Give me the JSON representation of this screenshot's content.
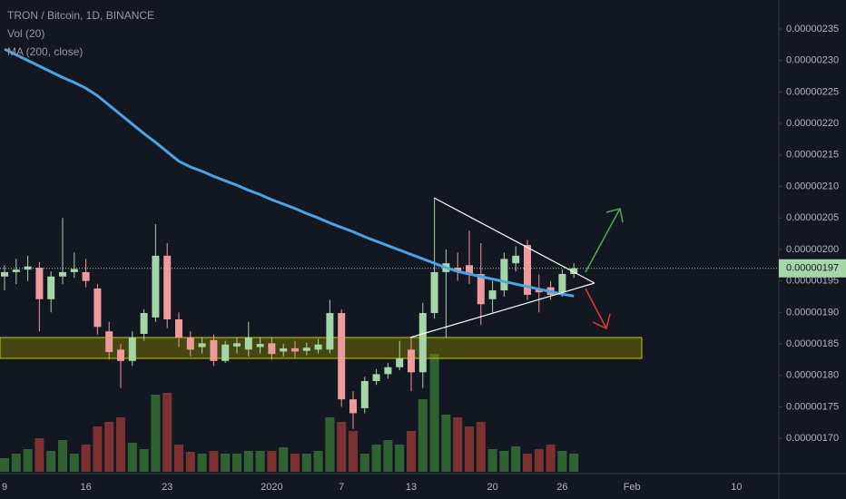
{
  "chart_data": {
    "type": "candlestick",
    "title": "TRON / Bitcoin, 1D, BINANCE",
    "categories": [
      "9",
      null,
      null,
      null,
      null,
      null,
      null,
      "16",
      null,
      null,
      null,
      null,
      null,
      null,
      "23",
      null,
      null,
      null,
      null,
      null,
      null,
      null,
      null,
      "2020",
      null,
      null,
      null,
      null,
      null,
      "7",
      null,
      null,
      null,
      null,
      null,
      "13",
      null,
      null,
      null,
      null,
      null,
      null,
      "20",
      null,
      null,
      null,
      null,
      null,
      "26",
      null,
      null,
      null,
      null,
      null,
      "Feb",
      null,
      null,
      null,
      null,
      null,
      null,
      null,
      null,
      "10"
    ],
    "up_color": "#a5d6a7",
    "down_color": "#ef9a9a",
    "series": [
      {
        "name": "TRON / Bitcoin, 1D, BINANCE",
        "open": [
          1.957e-07,
          1.964e-07,
          1.968e-07,
          1.971e-07,
          1.921e-07,
          1.957e-07,
          1.964e-07,
          1.964e-07,
          1.938e-07,
          1.87e-07,
          1.841e-07,
          1.823e-07,
          1.866e-07,
          1.892e-07,
          1.99e-07,
          1.889e-07,
          1.86e-07,
          1.845e-07,
          1.856e-07,
          1.823e-07,
          1.846e-07,
          1.841e-07,
          1.845e-07,
          1.851e-07,
          1.838e-07,
          1.843e-07,
          1.839e-07,
          1.841e-07,
          1.841e-07,
          1.899e-07,
          1.762e-07,
          1.748e-07,
          1.791e-07,
          1.802e-07,
          1.813e-07,
          1.841e-07,
          1.805e-07,
          1.899e-07,
          1.964e-07,
          1.971e-07,
          1.975e-07,
          1.961e-07,
          1.921e-07,
          1.935e-07,
          1.978e-07,
          2.007e-07,
          1.936e-07,
          1.94e-07,
          1.932e-07,
          1.961e-07,
          null,
          null,
          null,
          null,
          null,
          null,
          null,
          null,
          null,
          null,
          null,
          null,
          null,
          null
        ],
        "high": [
          1.975e-07,
          1.985e-07,
          1.99e-07,
          1.98e-07,
          1.965e-07,
          2.05e-07,
          1.995e-07,
          1.985e-07,
          1.945e-07,
          1.885e-07,
          1.85e-07,
          1.87e-07,
          1.905e-07,
          2.04e-07,
          2.01e-07,
          1.9e-07,
          1.87e-07,
          1.86e-07,
          1.865e-07,
          1.855e-07,
          1.86e-07,
          1.885e-07,
          1.86e-07,
          1.86e-07,
          1.85e-07,
          1.855e-07,
          1.852e-07,
          1.858e-07,
          1.92e-07,
          1.905e-07,
          1.775e-07,
          1.798e-07,
          1.81e-07,
          1.82e-07,
          1.855e-07,
          1.86e-07,
          1.915e-07,
          2.08e-07,
          2e-07,
          1.995e-07,
          2.03e-07,
          2.01e-07,
          1.95e-07,
          1.995e-07,
          2.005e-07,
          2.015e-07,
          1.96e-07,
          1.95e-07,
          1.968e-07,
          1.978e-07,
          null,
          null,
          null,
          null,
          null,
          null,
          null,
          null,
          null,
          null,
          null,
          null,
          null,
          null
        ],
        "low": [
          1.935e-07,
          1.945e-07,
          1.95e-07,
          1.87e-07,
          1.9e-07,
          1.945e-07,
          1.955e-07,
          1.94e-07,
          1.865e-07,
          1.825e-07,
          1.78e-07,
          1.815e-07,
          1.855e-07,
          1.885e-07,
          1.875e-07,
          1.845e-07,
          1.83e-07,
          1.835e-07,
          1.815e-07,
          1.82e-07,
          1.835e-07,
          1.83e-07,
          1.835e-07,
          1.825e-07,
          1.83e-07,
          1.828e-07,
          1.832e-07,
          1.835e-07,
          1.835e-07,
          1.75e-07,
          1.715e-07,
          1.74e-07,
          1.785e-07,
          1.795e-07,
          1.808e-07,
          1.775e-07,
          1.78e-07,
          1.89e-07,
          1.86e-07,
          1.95e-07,
          1.945e-07,
          1.88e-07,
          1.9e-07,
          1.925e-07,
          1.965e-07,
          1.92e-07,
          1.9e-07,
          1.92e-07,
          1.925e-07,
          1.955e-07,
          null,
          null,
          null,
          null,
          null,
          null,
          null,
          null,
          null,
          null,
          null,
          null,
          null,
          null
        ],
        "close": [
          1.964e-07,
          1.968e-07,
          1.973e-07,
          1.921e-07,
          1.957e-07,
          1.964e-07,
          1.969e-07,
          1.95e-07,
          1.877e-07,
          1.837e-07,
          1.823e-07,
          1.86e-07,
          1.899e-07,
          1.99e-07,
          1.889e-07,
          1.86e-07,
          1.841e-07,
          1.851e-07,
          1.823e-07,
          1.849e-07,
          1.851e-07,
          1.86e-07,
          1.85e-07,
          1.834e-07,
          1.843e-07,
          1.838e-07,
          1.844e-07,
          1.849e-07,
          1.899e-07,
          1.762e-07,
          1.74e-07,
          1.791e-07,
          1.802e-07,
          1.813e-07,
          1.827e-07,
          1.805e-07,
          1.899e-07,
          1.964e-07,
          1.978e-07,
          1.964e-07,
          1.961e-07,
          1.913e-07,
          1.935e-07,
          1.985e-07,
          1.99e-07,
          1.928e-07,
          1.932e-07,
          1.928e-07,
          1.961e-07,
          1.97e-07,
          null,
          null,
          null,
          null,
          null,
          null,
          null,
          null,
          null,
          null,
          null,
          null,
          null,
          null
        ]
      }
    ],
    "volume": {
      "name": "Vol (20)",
      "up_color": "#2f6332",
      "down_color": "#7d3030",
      "values": [
        15,
        20,
        25,
        37,
        23,
        35,
        20,
        30,
        50,
        55,
        60,
        32,
        25,
        85,
        87,
        30,
        22,
        20,
        23,
        20,
        20,
        23,
        23,
        23,
        27,
        20,
        20,
        23,
        60,
        55,
        45,
        20,
        30,
        35,
        30,
        45,
        80,
        130,
        63,
        60,
        50,
        55,
        25,
        23,
        28,
        20,
        25,
        30,
        23,
        20,
        null,
        null,
        null,
        null,
        null,
        null,
        null,
        null,
        null,
        null,
        null,
        null,
        null,
        null
      ]
    },
    "ma": {
      "name": "MA (200, close)",
      "color": "#4aa3e6",
      "values": [
        2.318e-07,
        2.309e-07,
        2.3e-07,
        2.291e-07,
        2.282e-07,
        2.273e-07,
        2.265e-07,
        2.256e-07,
        2.244e-07,
        2.229e-07,
        2.214e-07,
        2.199e-07,
        2.184e-07,
        2.17e-07,
        2.155e-07,
        2.14e-07,
        2.131e-07,
        2.124e-07,
        2.116e-07,
        2.109e-07,
        2.102e-07,
        2.094e-07,
        2.087e-07,
        2.079e-07,
        2.072e-07,
        2.065e-07,
        2.057e-07,
        2.05e-07,
        2.042e-07,
        2.035e-07,
        2.028e-07,
        2.02e-07,
        2.013e-07,
        2.006e-07,
        1.999e-07,
        1.992e-07,
        1.985e-07,
        1.978e-07,
        1.971e-07,
        1.965e-07,
        1.961e-07,
        1.957e-07,
        1.953e-07,
        1.949e-07,
        1.945e-07,
        1.941e-07,
        1.937e-07,
        1.933e-07,
        1.929e-07,
        1.926e-07,
        null,
        null,
        null,
        null,
        null,
        null,
        null,
        null,
        null,
        null,
        null,
        null,
        null,
        null
      ]
    },
    "last_price": {
      "value": 1.97e-07,
      "label": "0.00000197"
    },
    "ylim": [
      1.647e-07,
      2.396e-07
    ],
    "yticks": [
      {
        "value": 2.35e-07,
        "label": "0.00000235"
      },
      {
        "value": 2.3e-07,
        "label": "0.00000230"
      },
      {
        "value": 2.25e-07,
        "label": "0.00000225"
      },
      {
        "value": 2.2e-07,
        "label": "0.00000220"
      },
      {
        "value": 2.15e-07,
        "label": "0.00000215"
      },
      {
        "value": 2.1e-07,
        "label": "0.00000210"
      },
      {
        "value": 2.05e-07,
        "label": "0.00000205"
      },
      {
        "value": 2e-07,
        "label": "0.00000200"
      },
      {
        "value": 1.95e-07,
        "label": "0.00000195"
      },
      {
        "value": 1.9e-07,
        "label": "0.00000190"
      },
      {
        "value": 1.85e-07,
        "label": "0.00000185"
      },
      {
        "value": 1.8e-07,
        "label": "0.00000180"
      },
      {
        "value": 1.75e-07,
        "label": "0.00000175"
      },
      {
        "value": 1.7e-07,
        "label": "0.00000170"
      }
    ]
  }
}
